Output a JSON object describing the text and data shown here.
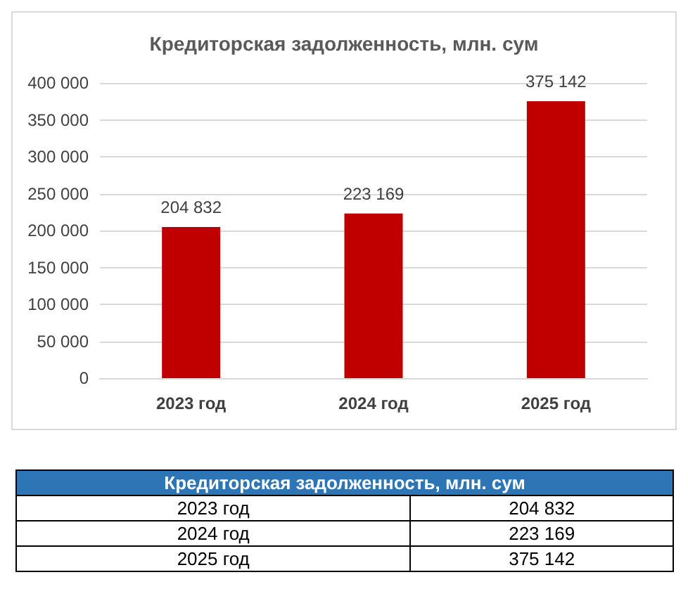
{
  "chart_data": {
    "type": "bar",
    "title": "Кредиторская задолженность, млн. сум",
    "categories": [
      "2023 год",
      "2024 год",
      "2025 год"
    ],
    "values": [
      204832,
      223169,
      375142
    ],
    "value_labels": [
      "204 832",
      "223 169",
      "375 142"
    ],
    "color": "#c00000",
    "ylim": [
      0,
      400000
    ],
    "yticks": [
      {
        "value": 0,
        "label": "0"
      },
      {
        "value": 50000,
        "label": "50 000"
      },
      {
        "value": 100000,
        "label": "100 000"
      },
      {
        "value": 150000,
        "label": "150 000"
      },
      {
        "value": 200000,
        "label": "200 000"
      },
      {
        "value": 250000,
        "label": "250 000"
      },
      {
        "value": 300000,
        "label": "300 000"
      },
      {
        "value": 350000,
        "label": "350 000"
      },
      {
        "value": 400000,
        "label": "400 000"
      }
    ],
    "grid": "y"
  }
}
